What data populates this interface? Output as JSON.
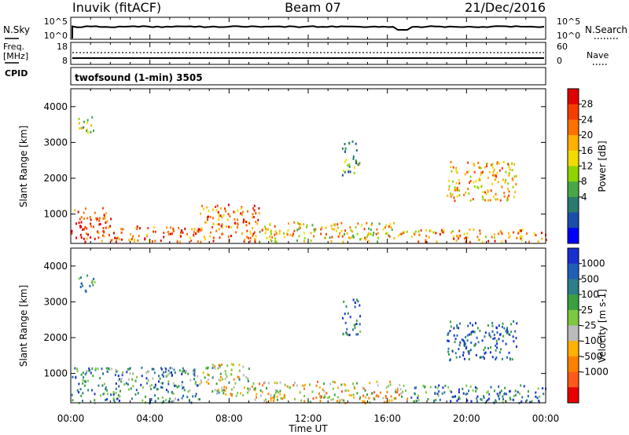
{
  "header": {
    "station": "Inuvik (fitACF)",
    "beam": "Beam 07",
    "date": "21/Dec/2016"
  },
  "nsky_panel": {
    "left_label": "N.Sky",
    "left_ticks": [
      "10^5",
      "10^0"
    ],
    "right_ticks": [
      "10^5",
      "10^0"
    ],
    "right_label": "N.Search",
    "line_color": "#000000"
  },
  "freq_panel": {
    "left_label_1": "Freq.",
    "left_label_2": "[MHz]",
    "left_ticks": [
      "18",
      "8"
    ],
    "right_ticks": [
      "60",
      "0"
    ],
    "right_label": "Nave",
    "cpid_label": "CPID"
  },
  "cpid_text": "twofsound (1-min) 3505",
  "chart_data": [
    {
      "type": "heatmap",
      "name": "power",
      "xlabel": "Time UT",
      "ylabel": "Slant Range [km]",
      "xlim_hours": [
        0,
        24
      ],
      "ylim_km": [
        180,
        4500
      ],
      "yticks": [
        "1000",
        "2000",
        "3000",
        "4000"
      ],
      "colorbar": {
        "label": "Power [dB]",
        "ticks": [
          "28",
          "24",
          "20",
          "16",
          "12",
          "8",
          "4"
        ],
        "colors": [
          "#e00000",
          "#f53d00",
          "#ff7000",
          "#ffb000",
          "#f2dc00",
          "#8fd400",
          "#48a848",
          "#2a7a70",
          "#1c4da8",
          "#0000ff"
        ]
      },
      "regions": [
        {
          "t0": 0.0,
          "t1": 2.0,
          "r0": 250,
          "r1": 1200,
          "level": 0.85
        },
        {
          "t0": 2.0,
          "t1": 6.5,
          "r0": 250,
          "r1": 700,
          "level": 0.8
        },
        {
          "t0": 6.5,
          "t1": 9.5,
          "r0": 250,
          "r1": 1300,
          "level": 0.75
        },
        {
          "t0": 9.5,
          "t1": 16.5,
          "r0": 250,
          "r1": 800,
          "level": 0.6
        },
        {
          "t0": 16.5,
          "t1": 24.0,
          "r0": 250,
          "r1": 600,
          "level": 0.7
        },
        {
          "t0": 13.7,
          "t1": 14.6,
          "r0": 2100,
          "r1": 3100,
          "level": 0.35
        },
        {
          "t0": 19.0,
          "t1": 22.5,
          "r0": 1400,
          "r1": 2500,
          "level": 0.65
        },
        {
          "t0": 0.3,
          "t1": 1.2,
          "r0": 3300,
          "r1": 3800,
          "level": 0.5
        }
      ]
    },
    {
      "type": "heatmap",
      "name": "velocity",
      "xlabel": "Time UT",
      "ylabel": "Slant Range [km]",
      "xlim_hours": [
        0,
        24
      ],
      "ylim_km": [
        180,
        4500
      ],
      "yticks": [
        "1000",
        "2000",
        "3000",
        "4000"
      ],
      "colorbar": {
        "label": "Velocity [m s-1]",
        "ticks": [
          "1000",
          "500",
          "100",
          "25",
          "-25",
          "-100",
          "-500",
          "-1000"
        ],
        "colors": [
          "#1a2fd0",
          "#1f5fb8",
          "#2c7e8a",
          "#3aa040",
          "#7cc840",
          "#bbbbbb",
          "#ffb000",
          "#ff8000",
          "#ff5a1a",
          "#e80000"
        ]
      },
      "regions": [
        {
          "t0": 0.0,
          "t1": 6.5,
          "r0": 200,
          "r1": 1200,
          "level": 0.7
        },
        {
          "t0": 6.5,
          "t1": 9.0,
          "r0": 400,
          "r1": 1300,
          "level": 0.5
        },
        {
          "t0": 9.0,
          "t1": 17.0,
          "r0": 200,
          "r1": 800,
          "level": 0.4
        },
        {
          "t0": 17.0,
          "t1": 24.0,
          "r0": 200,
          "r1": 700,
          "level": 0.75
        },
        {
          "t0": 13.7,
          "t1": 14.6,
          "r0": 2100,
          "r1": 3100,
          "level": 0.8
        },
        {
          "t0": 19.0,
          "t1": 22.5,
          "r0": 1400,
          "r1": 2500,
          "level": 0.85
        },
        {
          "t0": 0.3,
          "t1": 1.2,
          "r0": 3300,
          "r1": 3800,
          "level": 0.8
        }
      ]
    }
  ],
  "x_axis": {
    "ticks": [
      "00:00",
      "04:00",
      "08:00",
      "12:00",
      "16:00",
      "20:00",
      "00:00"
    ],
    "label": "Time UT"
  }
}
